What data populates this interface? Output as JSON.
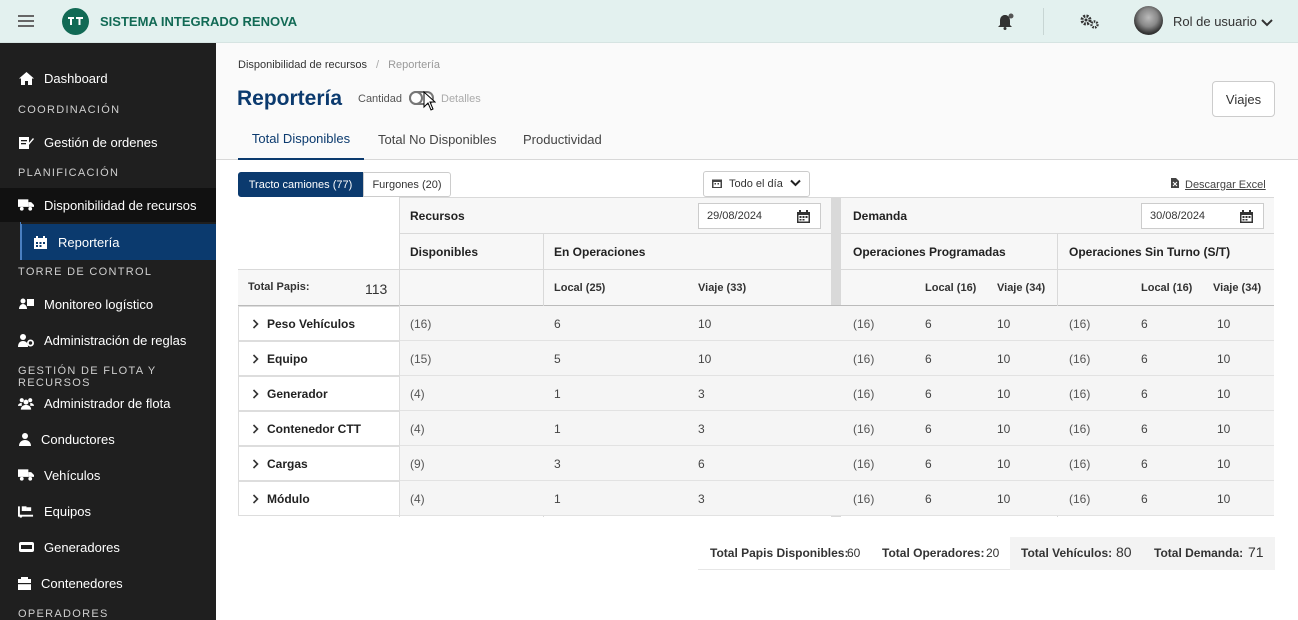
{
  "app": {
    "title": "SISTEMA INTEGRADO RENOVA",
    "user_label": "Rol de usuario"
  },
  "colors": {
    "accent": "#0b3a6e",
    "header_bg": "#e3f1ef",
    "sidebar_bg": "#1f1f1f",
    "logo": "#126a55"
  },
  "sidebar": {
    "dashboard": "Dashboard",
    "sec_coordinacion": "COORDINACIÓN",
    "gestion_ordenes": "Gestión de ordenes",
    "sec_planificacion": "PLANIFICACIÓN",
    "disponibilidad": "Disponibilidad de recursos",
    "reporteria": "Reportería",
    "sec_torre": "TORRE DE CONTROL",
    "monitoreo": "Monitoreo logístico",
    "admin_reglas": "Administración de reglas",
    "sec_flota": "GESTIÓN DE FLOTA Y RECURSOS",
    "admin_flota": "Administrador de flota",
    "conductores": "Conductores",
    "vehiculos": "Vehículos",
    "equipos": "Equipos",
    "generadores": "Generadores",
    "contenedores": "Contenedores",
    "sec_operadores": "OPERADORES"
  },
  "breadcrumb": {
    "parent": "Disponibilidad de recursos",
    "sep": "/",
    "current": "Reportería"
  },
  "page": {
    "title": "Reportería",
    "toggle_left": "Cantidad",
    "toggle_right": "Detalles",
    "viajes_button": "Viajes"
  },
  "tabs": [
    "Total Disponibles",
    "Total No Disponibles",
    "Productividad"
  ],
  "filters": {
    "tracto": "Tracto camiones (77)",
    "furgones": "Furgones (20)",
    "time": "Todo el día",
    "download": "Descargar Excel"
  },
  "table": {
    "recursos": "Recursos",
    "recursos_date": "29/08/2024",
    "demanda": "Demanda",
    "demanda_date": "30/08/2024",
    "disponibles": "Disponibles",
    "en_operaciones": "En Operaciones",
    "op_programadas": "Operaciones Programadas",
    "op_sin_turno": "Operaciones Sin Turno (S/T)",
    "total_papis_label": "Total Papis:",
    "total_papis_value": "113",
    "local_25": "Local (25)",
    "viaje_33": "Viaje (33)",
    "local_16": "Local (16)",
    "viaje_34": "Viaje (34)",
    "rows": [
      {
        "name": "Peso Vehículos",
        "disp": "(16)",
        "local": "6",
        "viaje": "10",
        "p_tot": "(16)",
        "p_local": "6",
        "p_viaje": "10",
        "s_tot": "(16)",
        "s_local": "6",
        "s_viaje": "10"
      },
      {
        "name": "Equipo",
        "disp": "(15)",
        "local": "5",
        "viaje": "10",
        "p_tot": "(16)",
        "p_local": "6",
        "p_viaje": "10",
        "s_tot": "(16)",
        "s_local": "6",
        "s_viaje": "10"
      },
      {
        "name": "Generador",
        "disp": "(4)",
        "local": "1",
        "viaje": "3",
        "p_tot": "(16)",
        "p_local": "6",
        "p_viaje": "10",
        "s_tot": "(16)",
        "s_local": "6",
        "s_viaje": "10"
      },
      {
        "name": "Contenedor CTT",
        "disp": "(4)",
        "local": "1",
        "viaje": "3",
        "p_tot": "(16)",
        "p_local": "6",
        "p_viaje": "10",
        "s_tot": "(16)",
        "s_local": "6",
        "s_viaje": "10"
      },
      {
        "name": "Cargas",
        "disp": "(9)",
        "local": "3",
        "viaje": "6",
        "p_tot": "(16)",
        "p_local": "6",
        "p_viaje": "10",
        "s_tot": "(16)",
        "s_local": "6",
        "s_viaje": "10"
      },
      {
        "name": "Módulo",
        "disp": "(4)",
        "local": "1",
        "viaje": "3",
        "p_tot": "(16)",
        "p_local": "6",
        "p_viaje": "10",
        "s_tot": "(16)",
        "s_local": "6",
        "s_viaje": "10"
      }
    ]
  },
  "totals": {
    "papis_label": "Total Papis Disponibles:",
    "papis_value": "60",
    "operadores_label": "Total Operadores:",
    "operadores_value": "20",
    "vehiculos_label": "Total Vehículos:",
    "vehiculos_value": "80",
    "demanda_label": "Total Demanda:",
    "demanda_value": "71"
  }
}
